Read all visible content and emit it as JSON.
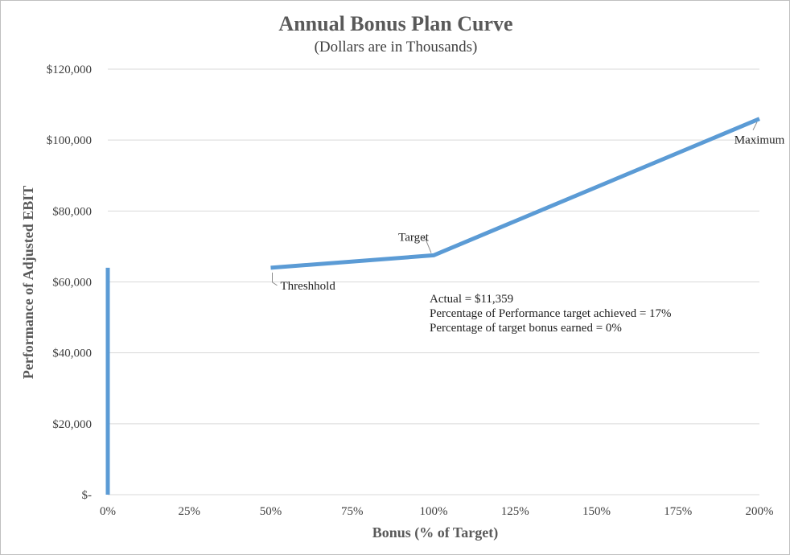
{
  "chart_data": {
    "type": "line",
    "title": "Annual Bonus Plan Curve",
    "subtitle": "(Dollars are in Thousands)",
    "xlabel": "Bonus (% of Target)",
    "ylabel": "Performance of Adjusted EBIT",
    "xlim": [
      0,
      200
    ],
    "ylim": [
      0,
      120000
    ],
    "x_ticks": [
      0,
      25,
      50,
      75,
      100,
      125,
      150,
      175,
      200
    ],
    "x_tick_labels": [
      "0%",
      "25%",
      "50%",
      "75%",
      "100%",
      "125%",
      "150%",
      "175%",
      "200%"
    ],
    "y_ticks": [
      0,
      20000,
      40000,
      60000,
      80000,
      100000,
      120000
    ],
    "y_tick_labels": [
      "$-",
      "$20,000",
      "$40,000",
      "$60,000",
      "$80,000",
      "$100,000",
      "$120,000"
    ],
    "grid": "horizontal",
    "color": "#5b9bd5",
    "series": [
      {
        "x": [
          0,
          0
        ],
        "y": [
          0,
          64000
        ]
      },
      {
        "x": [
          50,
          100,
          200
        ],
        "y": [
          64000,
          67500,
          106000
        ]
      }
    ],
    "point_labels": [
      {
        "text": "Threshhold",
        "x": 50,
        "y": 64000
      },
      {
        "text": "Target",
        "x": 100,
        "y": 67500
      },
      {
        "text": "Maximum",
        "x": 200,
        "y": 106000
      }
    ],
    "annotation_lines": [
      "Actual = $11,359",
      "Percentage of Performance target achieved = 17%",
      "Percentage of target bonus earned = 0%"
    ]
  }
}
